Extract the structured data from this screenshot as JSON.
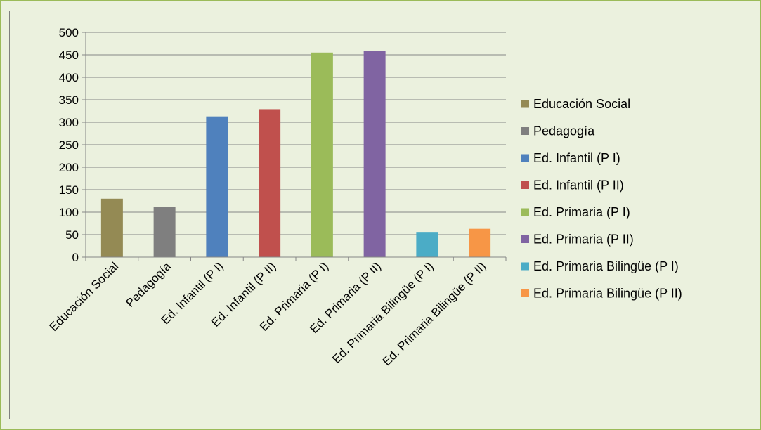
{
  "chart_data": {
    "type": "bar",
    "categories": [
      "Educación Social",
      "Pedagogía",
      "Ed. Infantil (P I)",
      "Ed. Infantil (P II)",
      "Ed. Primaria (P I)",
      "Ed. Primaria (P II)",
      "Ed. Primaria Bilingüe (P I)",
      "Ed. Primaria Bilingüe (P II)"
    ],
    "values": [
      130,
      111,
      313,
      329,
      455,
      459,
      56,
      63
    ],
    "colors": [
      "#948a54",
      "#7f7f7f",
      "#4f81bd",
      "#c0504d",
      "#9bbb59",
      "#8064a2",
      "#4bacc6",
      "#f79646"
    ],
    "ylim": [
      0,
      500
    ],
    "yticks": [
      0,
      50,
      100,
      150,
      200,
      250,
      300,
      350,
      400,
      450,
      500
    ],
    "grid": true,
    "legend_position": "right",
    "title": "",
    "xlabel": "",
    "ylabel": ""
  }
}
